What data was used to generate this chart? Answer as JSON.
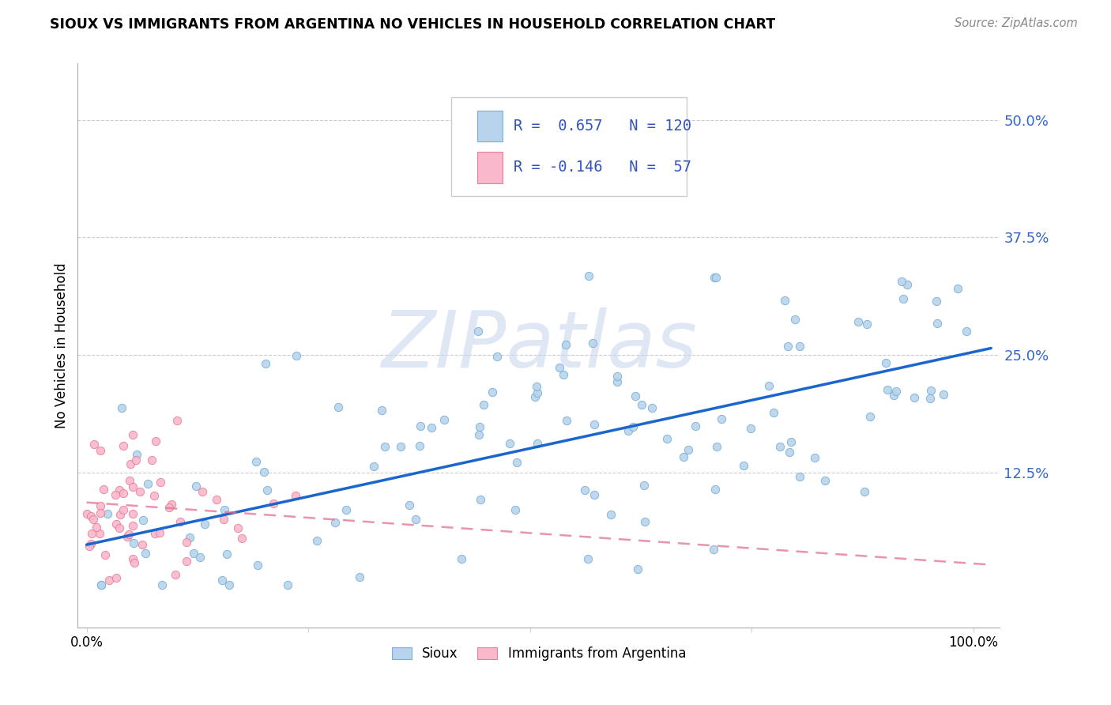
{
  "title": "SIOUX VS IMMIGRANTS FROM ARGENTINA NO VEHICLES IN HOUSEHOLD CORRELATION CHART",
  "source": "Source: ZipAtlas.com",
  "ylabel": "No Vehicles in Household",
  "ytick_labels": [
    "12.5%",
    "25.0%",
    "37.5%",
    "50.0%"
  ],
  "ytick_values": [
    0.125,
    0.25,
    0.375,
    0.5
  ],
  "xlim": [
    -0.01,
    1.03
  ],
  "ylim": [
    -0.04,
    0.56
  ],
  "sioux_color": "#b8d4ec",
  "sioux_edge_color": "#7aaed4",
  "argentina_color": "#f9b8cb",
  "argentina_edge_color": "#e8809a",
  "trend_sioux_color": "#1a66cc",
  "trend_argentina_color": "#e07090",
  "legend_sioux_R": "0.657",
  "legend_sioux_N": "120",
  "legend_argentina_R": "-0.146",
  "legend_argentina_N": "57",
  "legend_text_color": "#3355bb",
  "ytick_color": "#3366cc",
  "watermark_text": "ZIPatlas",
  "watermark_color": "#c8d8ec",
  "sioux_trend_intercept": 0.048,
  "sioux_trend_slope": 0.205,
  "argentina_trend_intercept": 0.093,
  "argentina_trend_slope": -0.065
}
